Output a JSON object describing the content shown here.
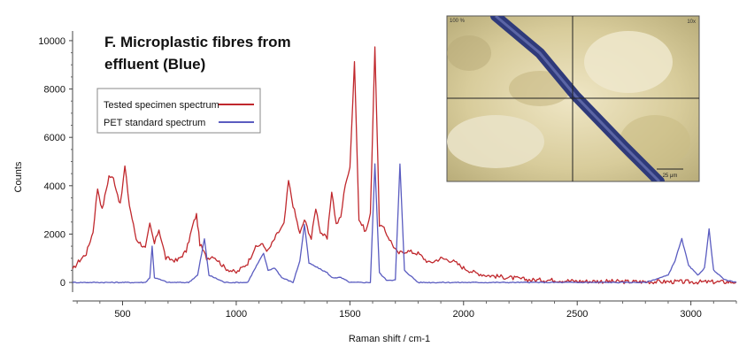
{
  "chart_data": {
    "type": "line",
    "title_lines": [
      "F. Microplastic fibres from",
      "effluent (Blue)"
    ],
    "xlabel": "Raman shift / cm-1",
    "ylabel": "Counts",
    "xlim": [
      280,
      3200
    ],
    "ylim": [
      -400,
      10400
    ],
    "x_ticks": [
      500,
      1000,
      1500,
      2000,
      2500,
      3000
    ],
    "y_ticks": [
      0,
      2000,
      4000,
      6000,
      8000,
      10000
    ],
    "legend_position": "upper-left",
    "series": [
      {
        "name": "Tested specimen spectrum",
        "color": "#c0282d",
        "points": [
          [
            280,
            500
          ],
          [
            300,
            800
          ],
          [
            340,
            1200
          ],
          [
            370,
            2100
          ],
          [
            390,
            3900
          ],
          [
            410,
            3000
          ],
          [
            440,
            4400
          ],
          [
            460,
            4300
          ],
          [
            490,
            3200
          ],
          [
            510,
            4800
          ],
          [
            530,
            3200
          ],
          [
            560,
            1800
          ],
          [
            600,
            1400
          ],
          [
            620,
            2400
          ],
          [
            640,
            1600
          ],
          [
            660,
            2200
          ],
          [
            690,
            1000
          ],
          [
            740,
            900
          ],
          [
            780,
            1300
          ],
          [
            810,
            2400
          ],
          [
            825,
            2800
          ],
          [
            840,
            1600
          ],
          [
            870,
            1000
          ],
          [
            900,
            1100
          ],
          [
            950,
            600
          ],
          [
            1000,
            400
          ],
          [
            1050,
            800
          ],
          [
            1080,
            1400
          ],
          [
            1110,
            1600
          ],
          [
            1140,
            1300
          ],
          [
            1180,
            2000
          ],
          [
            1210,
            2400
          ],
          [
            1230,
            4200
          ],
          [
            1250,
            3200
          ],
          [
            1280,
            2000
          ],
          [
            1300,
            2600
          ],
          [
            1330,
            1800
          ],
          [
            1350,
            3100
          ],
          [
            1370,
            2100
          ],
          [
            1400,
            1800
          ],
          [
            1420,
            3800
          ],
          [
            1440,
            2400
          ],
          [
            1460,
            2700
          ],
          [
            1480,
            4100
          ],
          [
            1500,
            4700
          ],
          [
            1520,
            9200
          ],
          [
            1540,
            2600
          ],
          [
            1570,
            2100
          ],
          [
            1590,
            2800
          ],
          [
            1610,
            9800
          ],
          [
            1630,
            2400
          ],
          [
            1650,
            2200
          ],
          [
            1680,
            1700
          ],
          [
            1710,
            1200
          ],
          [
            1750,
            1300
          ],
          [
            1800,
            1200
          ],
          [
            1850,
            800
          ],
          [
            1900,
            1000
          ],
          [
            1950,
            900
          ],
          [
            2000,
            600
          ],
          [
            2050,
            400
          ],
          [
            2100,
            300
          ],
          [
            2200,
            200
          ],
          [
            2300,
            100
          ],
          [
            2400,
            100
          ],
          [
            2500,
            50
          ],
          [
            2600,
            50
          ],
          [
            2700,
            30
          ],
          [
            2800,
            30
          ],
          [
            2900,
            30
          ],
          [
            3000,
            20
          ],
          [
            3100,
            20
          ],
          [
            3200,
            20
          ]
        ]
      },
      {
        "name": "PET standard spectrum",
        "color": "#5a5cc0",
        "points": [
          [
            280,
            0
          ],
          [
            400,
            0
          ],
          [
            500,
            0
          ],
          [
            600,
            0
          ],
          [
            620,
            200
          ],
          [
            630,
            1500
          ],
          [
            640,
            200
          ],
          [
            700,
            0
          ],
          [
            790,
            0
          ],
          [
            830,
            300
          ],
          [
            860,
            1800
          ],
          [
            880,
            300
          ],
          [
            950,
            0
          ],
          [
            1000,
            0
          ],
          [
            1050,
            0
          ],
          [
            1090,
            700
          ],
          [
            1120,
            1200
          ],
          [
            1140,
            500
          ],
          [
            1170,
            600
          ],
          [
            1200,
            200
          ],
          [
            1250,
            0
          ],
          [
            1280,
            900
          ],
          [
            1300,
            2400
          ],
          [
            1320,
            800
          ],
          [
            1400,
            400
          ],
          [
            1420,
            200
          ],
          [
            1460,
            200
          ],
          [
            1500,
            0
          ],
          [
            1560,
            0
          ],
          [
            1590,
            0
          ],
          [
            1610,
            4900
          ],
          [
            1630,
            400
          ],
          [
            1660,
            100
          ],
          [
            1700,
            100
          ],
          [
            1720,
            4900
          ],
          [
            1740,
            500
          ],
          [
            1800,
            0
          ],
          [
            2000,
            0
          ],
          [
            2500,
            0
          ],
          [
            2800,
            0
          ],
          [
            2900,
            300
          ],
          [
            2930,
            900
          ],
          [
            2960,
            1800
          ],
          [
            2990,
            700
          ],
          [
            3030,
            300
          ],
          [
            3060,
            600
          ],
          [
            3080,
            2200
          ],
          [
            3100,
            500
          ],
          [
            3150,
            100
          ],
          [
            3200,
            0
          ]
        ]
      }
    ]
  },
  "inset": {
    "top_left_text": "100 %",
    "top_right_text": "10x",
    "scalebar_label": "25 μm"
  }
}
